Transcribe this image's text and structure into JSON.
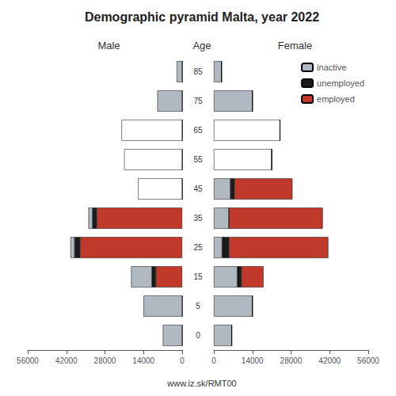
{
  "chart_data": [
    {
      "type": "bar",
      "orientation": "horizontal",
      "stacked": true,
      "title": "Male",
      "annotations": [
        "Demographic pyramid Malta, year 2022",
        "Age",
        "www.iz.sk/RMT00"
      ],
      "categories": [
        "0",
        "5",
        "15",
        "25",
        "35",
        "45",
        "55",
        "65",
        "75",
        "85"
      ],
      "series": [
        {
          "name": "employed",
          "color": "#c0392b",
          "values": [
            0,
            0,
            9500,
            37000,
            31000,
            0,
            0,
            0,
            0,
            0
          ]
        },
        {
          "name": "unemployed",
          "color": "#1a1a1a",
          "values": [
            0,
            0,
            1500,
            2000,
            1500,
            0,
            0,
            0,
            0,
            0
          ]
        },
        {
          "name": "inactive",
          "color": "#b0b8c1",
          "colors": [
            "#b0b8c1",
            "#b0b8c1",
            "#b0b8c1",
            "#b0b8c1",
            "#b0b8c1",
            "#ffffff",
            "#ffffff",
            "#ffffff",
            "#b0b8c1",
            "#b0b8c1"
          ],
          "values": [
            7000,
            14000,
            7500,
            1500,
            1500,
            16000,
            21000,
            22000,
            9000,
            2000
          ]
        }
      ],
      "xlim": [
        0,
        56000
      ],
      "xticks": [
        0,
        14000,
        28000,
        42000,
        56000
      ],
      "grid": false
    },
    {
      "type": "bar",
      "orientation": "horizontal",
      "stacked": true,
      "title": "Female",
      "categories": [
        "0",
        "5",
        "15",
        "25",
        "35",
        "45",
        "55",
        "65",
        "75",
        "85"
      ],
      "series": [
        {
          "name": "inactive",
          "color": "#b0b8c1",
          "colors": [
            "#b0b8c1",
            "#b0b8c1",
            "#b0b8c1",
            "#b0b8c1",
            "#b0b8c1",
            "#b0b8c1",
            "#ffffff",
            "#ffffff",
            "#b0b8c1",
            "#b0b8c1"
          ],
          "values": [
            6500,
            14000,
            8500,
            3000,
            5500,
            6000,
            21000,
            24000,
            14000,
            2800
          ]
        },
        {
          "name": "unemployed",
          "color": "#1a1a1a",
          "values": [
            0,
            0,
            1500,
            2500,
            0,
            1500,
            0,
            0,
            0,
            0
          ]
        },
        {
          "name": "employed",
          "color": "#c0392b",
          "values": [
            0,
            0,
            8000,
            36000,
            34000,
            21000,
            0,
            0,
            0,
            0
          ]
        }
      ],
      "xlim": [
        0,
        56000
      ],
      "xticks": [
        0,
        14000,
        28000,
        42000,
        56000
      ],
      "grid": false,
      "legend": "upper right"
    }
  ]
}
